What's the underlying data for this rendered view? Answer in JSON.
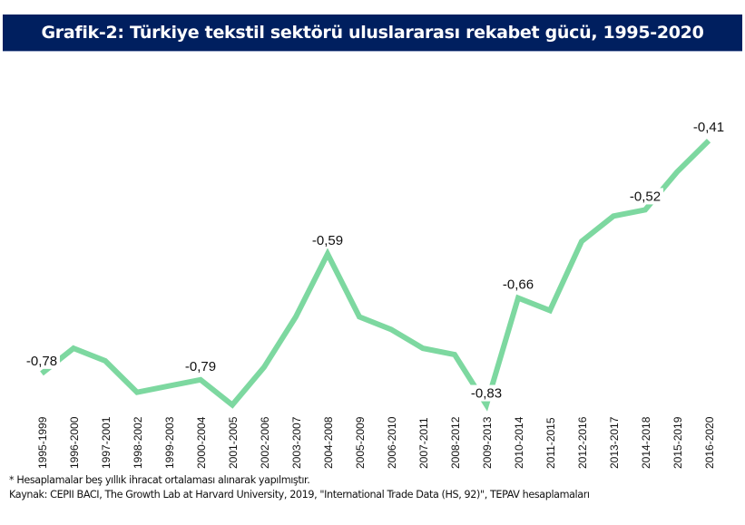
{
  "title": "Grafik-2: Türkiye tekstil sektörü uluslararası rekabet gücü, 1995-2020",
  "footnote": "* Hesaplamalar beş yıllık ihracat ortalaması alınarak yapılmıştır.",
  "source": "Kaynak: CEPII BACI, The Growth Lab at Harvard University, 2019, \"International Trade Data (HS, 92)\", TEPAV hesaplamaları",
  "colors": {
    "title_bg": "#001f5f",
    "line": "#7dd8a0"
  },
  "chart_data": {
    "type": "line",
    "title": "Grafik-2: Türkiye tekstil sektörü uluslararası rekabet gücü, 1995-2020",
    "xlabel": "",
    "ylabel": "",
    "grid": false,
    "legend": "none",
    "categories": [
      "1995-1999",
      "1996-2000",
      "1997-2001",
      "1998-2002",
      "1999-2003",
      "2000-2004",
      "2001-2005",
      "2002-2006",
      "2003-2007",
      "2004-2008",
      "2005-2009",
      "2006-2010",
      "2007-2011",
      "2008-2012",
      "2009-2013",
      "2010-2014",
      "2011-2015",
      "2012-2016",
      "2013-2017",
      "2014-2018",
      "2015-2019",
      "2016-2020"
    ],
    "series": [
      {
        "name": "Uluslararası rekabet gücü",
        "values": [
          -0.78,
          -0.74,
          -0.76,
          -0.81,
          -0.8,
          -0.79,
          -0.83,
          -0.77,
          -0.69,
          -0.59,
          -0.69,
          -0.71,
          -0.74,
          -0.75,
          -0.83,
          -0.66,
          -0.68,
          -0.57,
          -0.53,
          -0.52,
          -0.46,
          -0.41
        ]
      }
    ],
    "data_labels": [
      {
        "category": "1995-1999",
        "text": "-0,78"
      },
      {
        "category": "2000-2004",
        "text": "-0,79"
      },
      {
        "category": "2004-2008",
        "text": "-0,59"
      },
      {
        "category": "2009-2013",
        "text": "-0,83"
      },
      {
        "category": "2010-2014",
        "text": "-0,66"
      },
      {
        "category": "2014-2018",
        "text": "-0,52"
      },
      {
        "category": "2016-2020",
        "text": "-0,41"
      }
    ],
    "ylim": [
      -0.84,
      -0.4
    ]
  }
}
